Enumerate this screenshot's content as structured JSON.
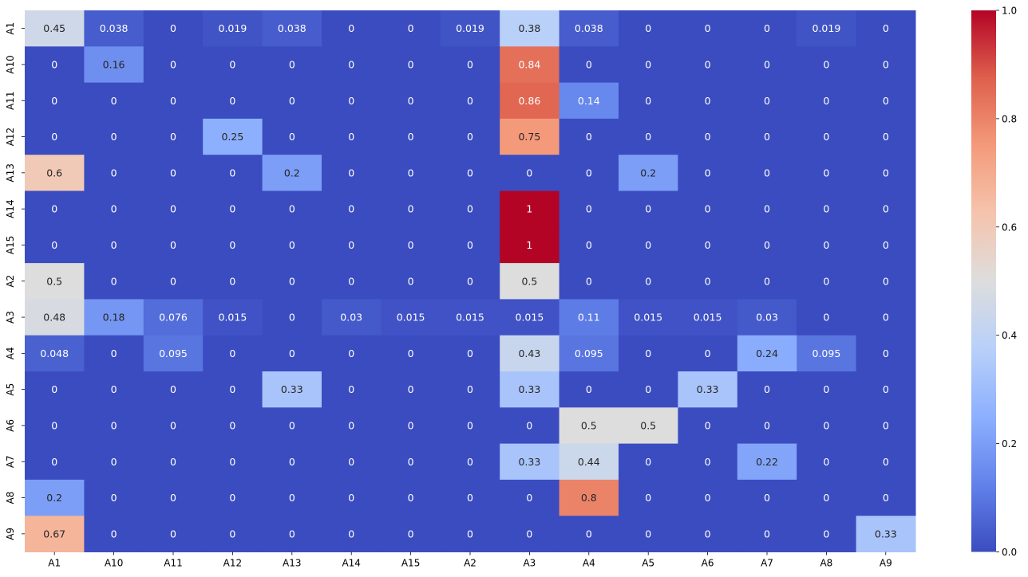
{
  "chart_data": {
    "type": "heatmap",
    "title": "",
    "xlabel": "",
    "ylabel": "",
    "colormap": "coolwarm",
    "vmin": 0,
    "vmax": 1,
    "x_labels": [
      "A1",
      "A10",
      "A11",
      "A12",
      "A13",
      "A14",
      "A15",
      "A2",
      "A3",
      "A4",
      "A5",
      "A6",
      "A7",
      "A8",
      "A9"
    ],
    "y_labels": [
      "A1",
      "A10",
      "A11",
      "A12",
      "A13",
      "A14",
      "A15",
      "A2",
      "A3",
      "A4",
      "A5",
      "A6",
      "A7",
      "A8",
      "A9"
    ],
    "values": [
      [
        0.45,
        0.038,
        0,
        0.019,
        0.038,
        0,
        0,
        0.019,
        0.38,
        0.038,
        0,
        0,
        0,
        0.019,
        0
      ],
      [
        0,
        0.16,
        0,
        0,
        0,
        0,
        0,
        0,
        0.84,
        0,
        0,
        0,
        0,
        0,
        0
      ],
      [
        0,
        0,
        0,
        0,
        0,
        0,
        0,
        0,
        0.86,
        0.14,
        0,
        0,
        0,
        0,
        0
      ],
      [
        0,
        0,
        0,
        0.25,
        0,
        0,
        0,
        0,
        0.75,
        0,
        0,
        0,
        0,
        0,
        0
      ],
      [
        0.6,
        0,
        0,
        0,
        0.2,
        0,
        0,
        0,
        0,
        0,
        0.2,
        0,
        0,
        0,
        0
      ],
      [
        0,
        0,
        0,
        0,
        0,
        0,
        0,
        0,
        1,
        0,
        0,
        0,
        0,
        0,
        0
      ],
      [
        0,
        0,
        0,
        0,
        0,
        0,
        0,
        0,
        1,
        0,
        0,
        0,
        0,
        0,
        0
      ],
      [
        0.5,
        0,
        0,
        0,
        0,
        0,
        0,
        0,
        0.5,
        0,
        0,
        0,
        0,
        0,
        0
      ],
      [
        0.48,
        0.18,
        0.076,
        0.015,
        0,
        0.03,
        0.015,
        0.015,
        0.015,
        0.11,
        0.015,
        0.015,
        0.03,
        0,
        0
      ],
      [
        0.048,
        0,
        0.095,
        0,
        0,
        0,
        0,
        0,
        0.43,
        0.095,
        0,
        0,
        0.24,
        0.095,
        0
      ],
      [
        0,
        0,
        0,
        0,
        0.33,
        0,
        0,
        0,
        0.33,
        0,
        0,
        0.33,
        0,
        0,
        0
      ],
      [
        0,
        0,
        0,
        0,
        0,
        0,
        0,
        0,
        0,
        0.5,
        0.5,
        0,
        0,
        0,
        0
      ],
      [
        0,
        0,
        0,
        0,
        0,
        0,
        0,
        0,
        0.33,
        0.44,
        0,
        0,
        0.22,
        0,
        0
      ],
      [
        0.2,
        0,
        0,
        0,
        0,
        0,
        0,
        0,
        0,
        0.8,
        0,
        0,
        0,
        0,
        0
      ],
      [
        0.67,
        0,
        0,
        0,
        0,
        0,
        0,
        0,
        0,
        0,
        0,
        0,
        0,
        0,
        0.33
      ]
    ],
    "colorbar_ticks": [
      "0.0",
      "0.2",
      "0.4",
      "0.6",
      "0.8",
      "1.0"
    ],
    "colorbar_tick_values": [
      0,
      0.2,
      0.4,
      0.6,
      0.8,
      1.0
    ],
    "grid": false,
    "colorbar_position": "right"
  }
}
